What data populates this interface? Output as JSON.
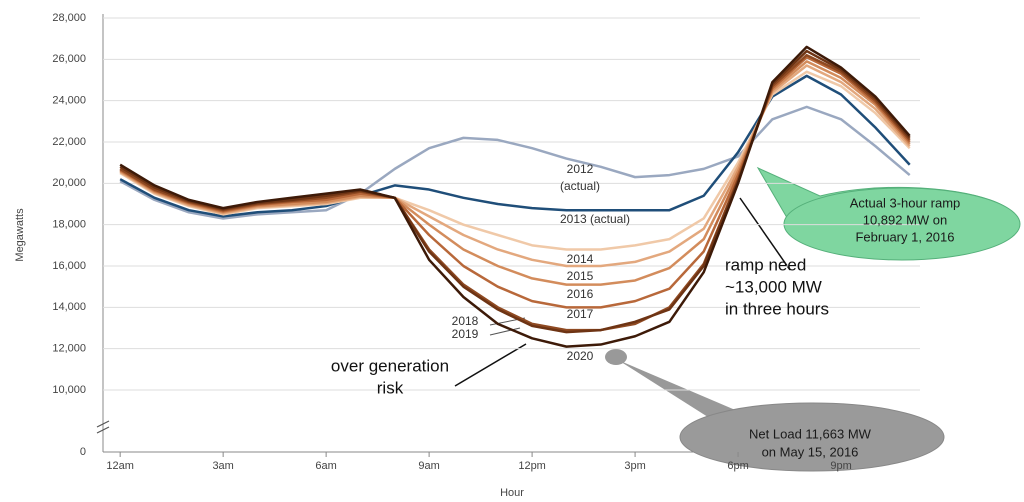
{
  "chart_data": {
    "type": "line",
    "y_label": "Megawatts",
    "x_label": "Hour",
    "x": [
      0,
      1,
      2,
      3,
      4,
      5,
      6,
      7,
      8,
      9,
      10,
      11,
      12,
      13,
      14,
      15,
      16,
      17,
      18,
      19,
      20,
      21,
      22,
      23
    ],
    "xlim": [
      -0.5,
      23.3
    ],
    "xticks": [
      {
        "value": 0,
        "label": "12am"
      },
      {
        "value": 3,
        "label": "3am"
      },
      {
        "value": 6,
        "label": "6am"
      },
      {
        "value": 9,
        "label": "9am"
      },
      {
        "value": 12,
        "label": "12pm"
      },
      {
        "value": 15,
        "label": "3pm"
      },
      {
        "value": 18,
        "label": "6pm"
      },
      {
        "value": 21,
        "label": "9pm"
      }
    ],
    "ylim": [
      0,
      28000
    ],
    "yticks": [
      0,
      {
        "value": 10000,
        "label": "10,000"
      },
      {
        "value": 12000,
        "label": "12,000"
      },
      {
        "value": 14000,
        "label": "14,000"
      },
      {
        "value": 16000,
        "label": "16,000"
      },
      {
        "value": 18000,
        "label": "18,000"
      },
      {
        "value": 20000,
        "label": "20,000"
      },
      {
        "value": 22000,
        "label": "22,000"
      },
      {
        "value": 24000,
        "label": "24,000"
      },
      {
        "value": 26000,
        "label": "26,000"
      },
      {
        "value": 28000,
        "label": "28,000"
      }
    ],
    "axis_break": true,
    "grid": true,
    "series": [
      {
        "name": "2012",
        "note": "(actual)",
        "color": "#9aa8c0",
        "values": [
          20100,
          19200,
          18600,
          18300,
          18500,
          18600,
          18700,
          19500,
          20700,
          21700,
          22200,
          22100,
          21700,
          21200,
          20800,
          20300,
          20400,
          20700,
          21300,
          23100,
          23700,
          23100,
          21800,
          20400
        ]
      },
      {
        "name": "2013 (actual)",
        "color": "#1f4e79",
        "values": [
          20200,
          19300,
          18700,
          18400,
          18600,
          18700,
          18900,
          19400,
          19900,
          19700,
          19300,
          19000,
          18800,
          18700,
          18700,
          18700,
          18700,
          19400,
          21500,
          24200,
          25200,
          24300,
          22700,
          20900
        ]
      },
      {
        "name": "2014",
        "color": "#f0c9a8",
        "values": [
          20500,
          19500,
          18900,
          18500,
          18800,
          18900,
          19000,
          19300,
          19300,
          18700,
          18000,
          17500,
          17000,
          16800,
          16800,
          17000,
          17300,
          18300,
          21000,
          24300,
          25400,
          24700,
          23400,
          21700
        ]
      },
      {
        "name": "2015",
        "color": "#e3a87e",
        "values": [
          20550,
          19550,
          18950,
          18550,
          18850,
          18950,
          19050,
          19350,
          19300,
          18400,
          17500,
          16800,
          16300,
          16000,
          16000,
          16200,
          16700,
          17800,
          20800,
          24400,
          25700,
          24900,
          23600,
          21800
        ]
      },
      {
        "name": "2016",
        "color": "#d38c5c",
        "values": [
          20600,
          19600,
          19000,
          18600,
          18900,
          19000,
          19100,
          19400,
          19300,
          18000,
          16800,
          16000,
          15400,
          15100,
          15100,
          15300,
          15900,
          17300,
          20600,
          24500,
          25900,
          25100,
          23800,
          21900
        ]
      },
      {
        "name": "2017",
        "color": "#b8683a",
        "values": [
          20650,
          19650,
          19050,
          18650,
          18950,
          19100,
          19200,
          19500,
          19300,
          17500,
          16000,
          15000,
          14300,
          14000,
          14000,
          14300,
          14900,
          16700,
          20400,
          24600,
          26100,
          25300,
          23900,
          22000
        ]
      },
      {
        "name": "2018",
        "color": "#8f4a22",
        "values": [
          20700,
          19700,
          19100,
          18700,
          19000,
          19150,
          19300,
          19600,
          19300,
          16800,
          15100,
          14000,
          13200,
          12900,
          12900,
          13200,
          14000,
          16100,
          20200,
          24700,
          26200,
          25400,
          24000,
          22100
        ]
      },
      {
        "name": "2019",
        "color": "#6e3414",
        "values": [
          20800,
          19800,
          19150,
          18750,
          19050,
          19200,
          19400,
          19650,
          19300,
          16700,
          15000,
          13900,
          13100,
          12800,
          12900,
          13300,
          13900,
          16000,
          20100,
          24800,
          26400,
          25500,
          24100,
          22200
        ]
      },
      {
        "name": "2020",
        "color": "#3d1a08",
        "values": [
          20900,
          19900,
          19200,
          18800,
          19100,
          19300,
          19500,
          19700,
          19300,
          16300,
          14500,
          13200,
          12500,
          12100,
          12200,
          12600,
          13300,
          15700,
          20000,
          24900,
          26600,
          25600,
          24200,
          22300
        ]
      }
    ],
    "annotations": {
      "ramp_need": [
        "ramp need",
        "~13,000 MW",
        "in three hours"
      ],
      "over_generation": [
        "over generation",
        "risk"
      ],
      "actual_ramp": [
        "Actual 3-hour ramp",
        "10,892 MW on",
        "February 1, 2016"
      ],
      "net_load": [
        "Net Load 11,663 MW",
        "on May 15, 2016"
      ]
    }
  }
}
